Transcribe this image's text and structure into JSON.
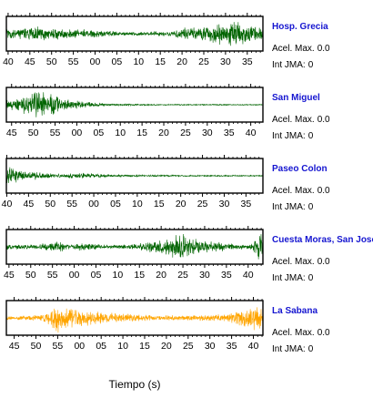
{
  "chart_data": {
    "type": "line",
    "xlabel": "Tiempo (s)",
    "panels": [
      {
        "station": "Hosp. Grecia",
        "acel_label": "Acel. Max.",
        "acel_value": "0.0",
        "int_label": "Int JMA:",
        "int_value": "0",
        "color": "#006400",
        "tick_labels": [
          "40",
          "45",
          "50",
          "55",
          "00",
          "05",
          "10",
          "15",
          "20",
          "25",
          "30",
          "35"
        ],
        "x_start": 39.6,
        "x_span": 59,
        "envelope": [
          [
            0,
            0.35
          ],
          [
            0.08,
            0.4
          ],
          [
            0.12,
            0.55
          ],
          [
            0.2,
            0.4
          ],
          [
            0.32,
            0.3
          ],
          [
            0.45,
            0.15
          ],
          [
            0.55,
            0.15
          ],
          [
            0.65,
            0.2
          ],
          [
            0.7,
            0.45
          ],
          [
            0.78,
            0.5
          ],
          [
            0.84,
            0.8
          ],
          [
            0.9,
            0.95
          ],
          [
            0.94,
            0.7
          ],
          [
            1,
            0.4
          ]
        ]
      },
      {
        "station": "San Miguel",
        "acel_label": "Acel. Max.",
        "acel_value": "0.0",
        "int_label": "Int JMA:",
        "int_value": "0",
        "color": "#006400",
        "tick_labels": [
          "45",
          "50",
          "55",
          "00",
          "05",
          "10",
          "15",
          "20",
          "25",
          "30",
          "35",
          "40"
        ],
        "x_start": 43.8,
        "x_span": 59,
        "envelope": [
          [
            0,
            0.3
          ],
          [
            0.05,
            0.5
          ],
          [
            0.09,
            0.75
          ],
          [
            0.12,
            1
          ],
          [
            0.17,
            0.8
          ],
          [
            0.22,
            0.4
          ],
          [
            0.3,
            0.2
          ],
          [
            0.4,
            0.08
          ],
          [
            0.6,
            0.04
          ],
          [
            1,
            0.03
          ]
        ]
      },
      {
        "station": "Paseo Colon",
        "acel_label": "Acel. Max.",
        "acel_value": "0.0",
        "int_label": "Int JMA:",
        "int_value": "0",
        "color": "#006400",
        "tick_labels": [
          "40",
          "45",
          "50",
          "55",
          "00",
          "05",
          "10",
          "15",
          "20",
          "25",
          "30",
          "35"
        ],
        "x_start": 39.9,
        "x_span": 59,
        "envelope": [
          [
            0,
            1
          ],
          [
            0.02,
            0.6
          ],
          [
            0.05,
            0.35
          ],
          [
            0.12,
            0.25
          ],
          [
            0.2,
            0.12
          ],
          [
            0.3,
            0.22
          ],
          [
            0.36,
            0.12
          ],
          [
            0.5,
            0.06
          ],
          [
            1,
            0.04
          ]
        ]
      },
      {
        "station": "Cuesta Moras, San José",
        "acel_label": "Acel. Max.",
        "acel_value": "0.0",
        "int_label": "Int JMA:",
        "int_value": "0",
        "color": "#006400",
        "tick_labels": [
          "45",
          "50",
          "55",
          "00",
          "05",
          "10",
          "15",
          "20",
          "25",
          "30",
          "35",
          "40"
        ],
        "x_start": 44.4,
        "x_span": 59,
        "envelope": [
          [
            0,
            0.18
          ],
          [
            0.1,
            0.15
          ],
          [
            0.15,
            0.22
          ],
          [
            0.2,
            0.4
          ],
          [
            0.25,
            0.15
          ],
          [
            0.3,
            0.3
          ],
          [
            0.4,
            0.12
          ],
          [
            0.5,
            0.2
          ],
          [
            0.55,
            0.35
          ],
          [
            0.62,
            0.55
          ],
          [
            0.65,
            0.75
          ],
          [
            0.68,
            1
          ],
          [
            0.72,
            0.6
          ],
          [
            0.8,
            0.35
          ],
          [
            0.9,
            0.2
          ],
          [
            0.95,
            0.15
          ],
          [
            0.975,
            0.6
          ],
          [
            0.985,
            1
          ],
          [
            1,
            0.7
          ]
        ]
      },
      {
        "station": "La Sabana",
        "acel_label": "Acel. Max.",
        "acel_value": "0.0",
        "int_label": "Int JMA:",
        "int_value": "0",
        "color": "#ffa500",
        "tick_labels": [
          "45",
          "50",
          "55",
          "00",
          "05",
          "10",
          "15",
          "20",
          "25",
          "30",
          "35",
          "40"
        ],
        "x_start": 43.2,
        "x_span": 59,
        "envelope": [
          [
            0,
            0.12
          ],
          [
            0.08,
            0.15
          ],
          [
            0.15,
            0.3
          ],
          [
            0.2,
            1
          ],
          [
            0.24,
            0.6
          ],
          [
            0.28,
            0.7
          ],
          [
            0.32,
            0.5
          ],
          [
            0.4,
            0.35
          ],
          [
            0.5,
            0.25
          ],
          [
            0.6,
            0.2
          ],
          [
            0.7,
            0.18
          ],
          [
            0.85,
            0.25
          ],
          [
            0.92,
            0.6
          ],
          [
            0.97,
            0.9
          ],
          [
            1,
            0.7
          ]
        ]
      }
    ]
  }
}
